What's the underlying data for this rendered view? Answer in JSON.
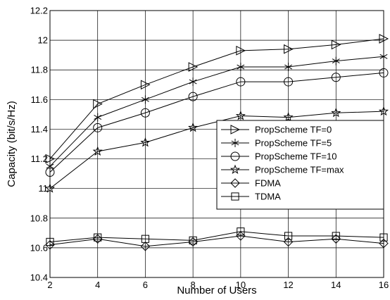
{
  "chart_data": {
    "type": "line",
    "title": "",
    "xlabel": "Number of Users",
    "ylabel": "Capacity (bit/s/Hz)",
    "xlim": [
      2,
      16
    ],
    "ylim": [
      10.4,
      12.2
    ],
    "x_ticks": [
      2,
      4,
      6,
      8,
      10,
      12,
      14,
      16
    ],
    "y_ticks": [
      10.4,
      10.6,
      10.8,
      11,
      11.2,
      11.4,
      11.6,
      11.8,
      12,
      12.2
    ],
    "x_tick_labels": [
      "2",
      "4",
      "6",
      "8",
      "10",
      "12",
      "14",
      "16"
    ],
    "y_tick_labels": [
      "10.4",
      "10.6",
      "10.8",
      "11",
      "11.2",
      "11.4",
      "11.6",
      "11.8",
      "12",
      "12.2"
    ],
    "grid": true,
    "legend_position": "right-middle",
    "x": [
      2,
      4,
      6,
      8,
      10,
      12,
      14,
      16
    ],
    "series": [
      {
        "name": "PropScheme TF=0",
        "marker": "triangle-right",
        "values": [
          11.2,
          11.57,
          11.7,
          11.82,
          11.93,
          11.94,
          11.97,
          12.01
        ]
      },
      {
        "name": "PropScheme TF=5",
        "marker": "asterisk",
        "values": [
          11.15,
          11.48,
          11.6,
          11.72,
          11.82,
          11.82,
          11.86,
          11.89
        ]
      },
      {
        "name": "PropScheme TF=10",
        "marker": "circle",
        "values": [
          11.11,
          11.41,
          11.51,
          11.62,
          11.72,
          11.72,
          11.75,
          11.78
        ]
      },
      {
        "name": "PropScheme TF=max",
        "marker": "star",
        "values": [
          11.0,
          11.25,
          11.31,
          11.41,
          11.49,
          11.48,
          11.51,
          11.52
        ]
      },
      {
        "name": "FDMA",
        "marker": "diamond",
        "values": [
          10.62,
          10.66,
          10.61,
          10.64,
          10.68,
          10.64,
          10.66,
          10.63
        ]
      },
      {
        "name": "TDMA",
        "marker": "square",
        "values": [
          10.64,
          10.67,
          10.66,
          10.65,
          10.71,
          10.68,
          10.68,
          10.67
        ]
      }
    ],
    "colors": {
      "line": "#000000",
      "grid": "#000000",
      "background": "#ffffff"
    }
  }
}
